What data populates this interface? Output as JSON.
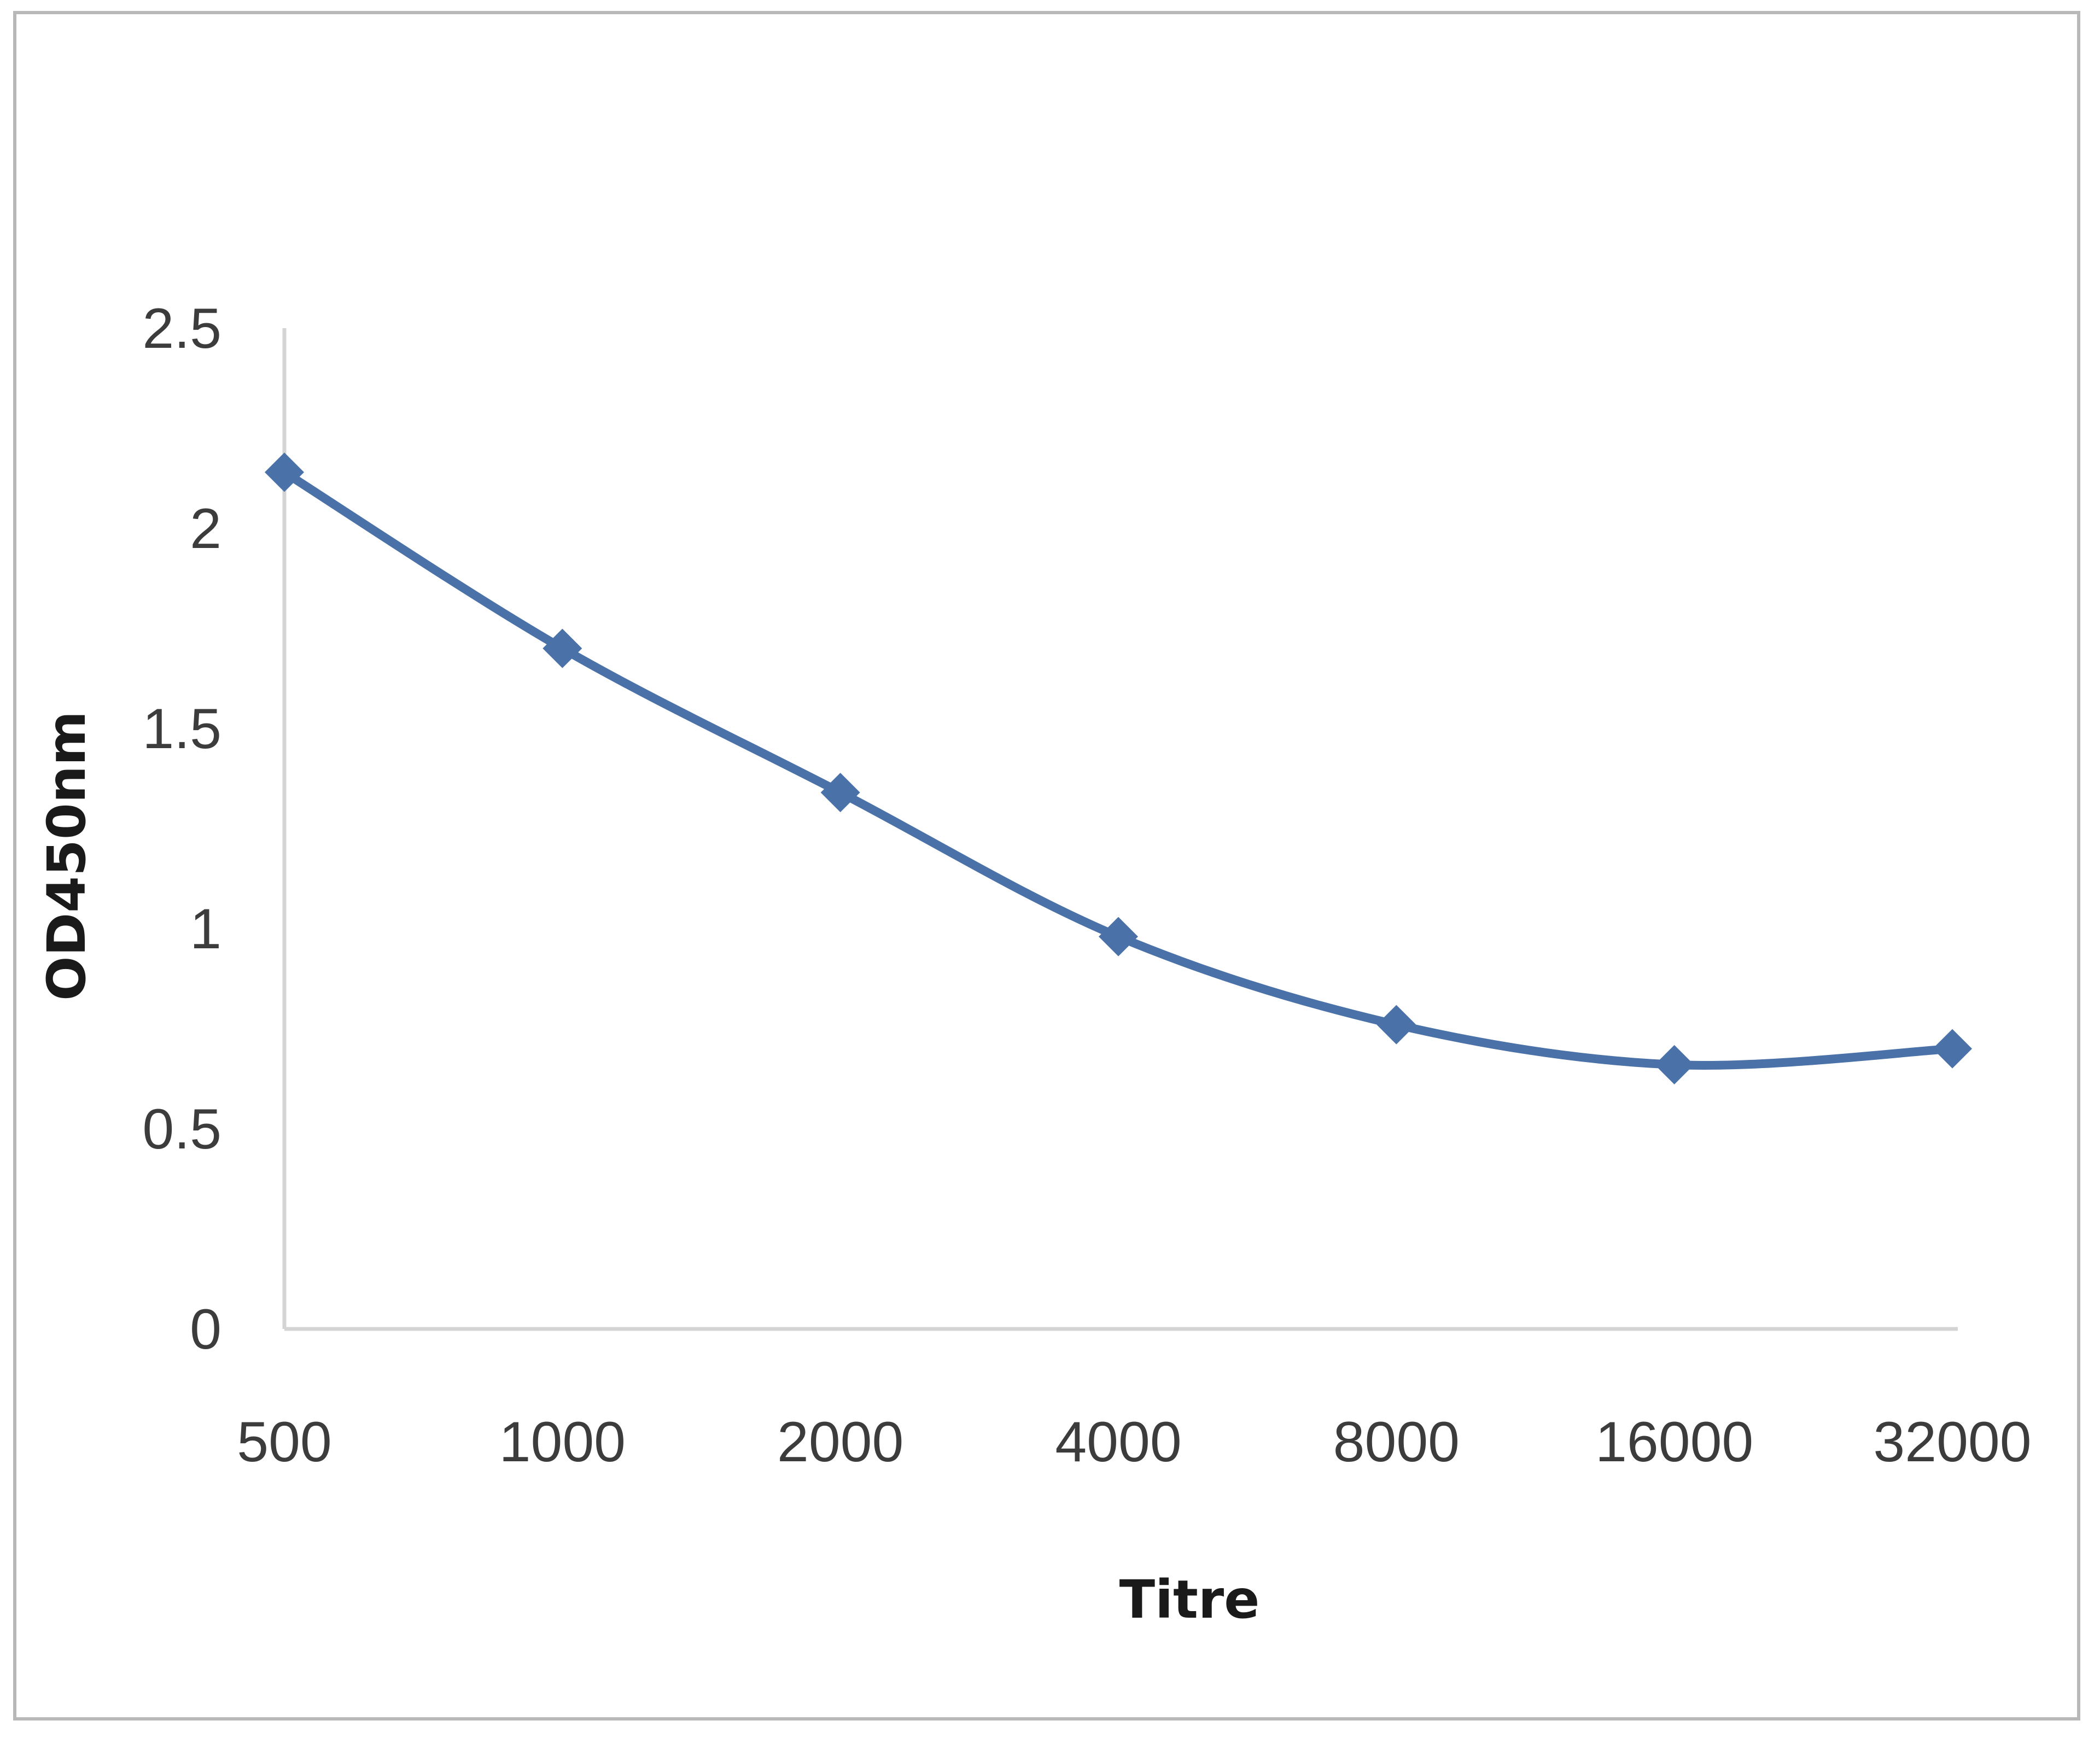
{
  "chart_data": {
    "type": "line",
    "title": "",
    "xlabel": "Titre",
    "ylabel": "OD450nm",
    "categories": [
      "500",
      "1000",
      "2000",
      "4000",
      "8000",
      "16000",
      "32000"
    ],
    "series": [
      {
        "values": [
          2.14,
          1.7,
          1.34,
          0.98,
          0.76,
          0.66,
          0.7
        ]
      }
    ],
    "ylim": [
      0,
      2.5
    ],
    "yticks": [
      "0",
      "0.5",
      "1",
      "1.5",
      "2",
      "2.5"
    ],
    "smooth": true,
    "grid": false,
    "legend": "none",
    "colors": {
      "series": "#4a72a8",
      "axis": "#d4d4d4"
    }
  }
}
